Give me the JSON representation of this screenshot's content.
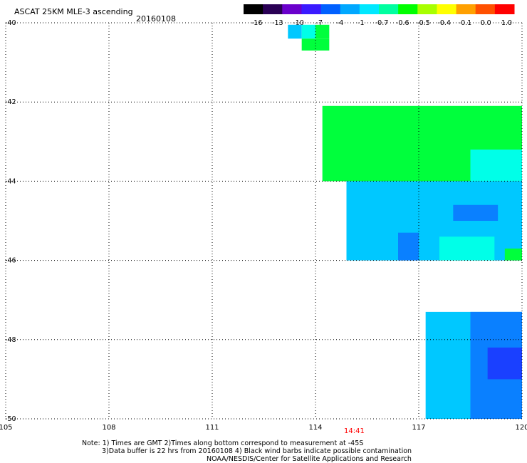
{
  "header": {
    "title": "ASCAT 25KM MLE-3 ascending",
    "date": "20160108"
  },
  "colorbar": {
    "tick_labels": [
      "-16",
      "-13",
      "-10",
      "-7",
      "-4",
      "-1",
      "-0.7",
      "-0.6",
      "-0.5",
      "-0.4",
      "-0.1",
      "0.0",
      "1.0"
    ],
    "colors": [
      "#000000",
      "#2a0055",
      "#6a00cc",
      "#3a1aff",
      "#0060ff",
      "#00a8ff",
      "#00e8ff",
      "#00ffa0",
      "#00ff00",
      "#a8ff00",
      "#ffff00",
      "#ffa000",
      "#ff5000",
      "#ff0000"
    ]
  },
  "map": {
    "lon_labels": [
      "105",
      "108",
      "111",
      "114",
      "117",
      "120"
    ],
    "lat_labels": [
      "-40",
      "-42",
      "-44",
      "-46",
      "-48",
      "-50"
    ],
    "time_label": "14:41",
    "time_label_color": "#ff0000"
  },
  "chart_data": {
    "type": "heatmap",
    "xlim": [
      105,
      120
    ],
    "ylim": [
      -50,
      -40
    ],
    "grid": true,
    "value_scale": [
      "-16",
      "-13",
      "-10",
      "-7",
      "-4",
      "-1",
      "-0.7",
      "-0.6",
      "-0.5",
      "-0.4",
      "-0.1",
      "0.0",
      "1.0"
    ],
    "regions": [
      {
        "value_class": "-1",
        "lon": [
          113.2,
          113.6
        ],
        "lat": [
          -40.4,
          -40.05
        ]
      },
      {
        "value_class": "-0.7",
        "lon": [
          113.6,
          114.0
        ],
        "lat": [
          -40.4,
          -40.05
        ]
      },
      {
        "value_class": "-0.5",
        "lon": [
          114.0,
          114.4
        ],
        "lat": [
          -40.4,
          -40.05
        ]
      },
      {
        "value_class": "-0.5",
        "lon": [
          113.6,
          114.4
        ],
        "lat": [
          -40.7,
          -40.4
        ]
      },
      {
        "value_class": "-0.5",
        "lon": [
          114.2,
          120.0
        ],
        "lat": [
          -44.0,
          -42.1
        ]
      },
      {
        "value_class": "-0.7",
        "lon": [
          118.5,
          120.0
        ],
        "lat": [
          -44.0,
          -43.2
        ]
      },
      {
        "value_class": "-1",
        "lon": [
          114.9,
          120.0
        ],
        "lat": [
          -46.0,
          -44.0
        ]
      },
      {
        "value_class": "-4",
        "lon": [
          118.0,
          119.3
        ],
        "lat": [
          -45.0,
          -44.6
        ]
      },
      {
        "value_class": "-0.7",
        "lon": [
          117.6,
          119.2
        ],
        "lat": [
          -46.0,
          -45.4
        ]
      },
      {
        "value_class": "-0.5",
        "lon": [
          119.5,
          120.0
        ],
        "lat": [
          -46.0,
          -45.7
        ]
      },
      {
        "value_class": "-4",
        "lon": [
          116.4,
          117.0
        ],
        "lat": [
          -46.0,
          -45.3
        ]
      },
      {
        "value_class": "-1",
        "lon": [
          117.2,
          120.0
        ],
        "lat": [
          -50.0,
          -47.3
        ]
      },
      {
        "value_class": "-4",
        "lon": [
          118.5,
          120.0
        ],
        "lat": [
          -50.0,
          -47.3
        ]
      },
      {
        "value_class": "-7",
        "lon": [
          119.0,
          120.0
        ],
        "lat": [
          -49.0,
          -48.2
        ]
      }
    ]
  },
  "notes": {
    "line1": "Note: 1) Times are GMT 2)Times along bottom correspond to measurement at -45S",
    "line2": "3)Data buffer is 22 hrs from 20160108 4) Black wind barbs indicate possible contamination",
    "line3": "NOAA/NESDIS/Center for Satellite Applications and Research"
  }
}
